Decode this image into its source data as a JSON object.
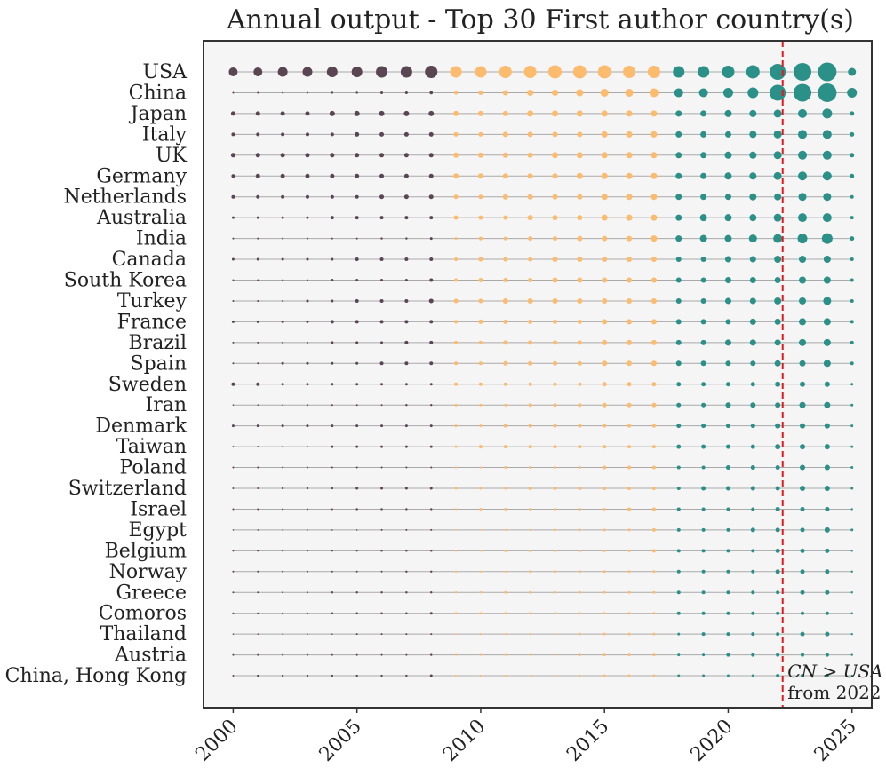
{
  "chart_data": {
    "type": "scatter",
    "title": "Annual output - Top 30 First author country(s)",
    "xlabel": "",
    "ylabel": "",
    "xlim": [
      1998.8,
      2025.8
    ],
    "x_ticks": [
      2000,
      2005,
      2010,
      2015,
      2020,
      2025
    ],
    "years": [
      2000,
      2001,
      2002,
      2003,
      2004,
      2005,
      2006,
      2007,
      2008,
      2009,
      2010,
      2011,
      2012,
      2013,
      2014,
      2015,
      2016,
      2017,
      2018,
      2019,
      2020,
      2021,
      2022,
      2023,
      2024,
      2025
    ],
    "countries": [
      "USA",
      "China",
      "Japan",
      "Italy",
      "UK",
      "Germany",
      "Netherlands",
      "Australia",
      "India",
      "Canada",
      "South Korea",
      "Turkey",
      "France",
      "Brazil",
      "Spain",
      "Sweden",
      "Iran",
      "Denmark",
      "Taiwan",
      "Poland",
      "Switzerland",
      "Israel",
      "Egypt",
      "Belgium",
      "Norway",
      "Greece",
      "Comoros",
      "Thailand",
      "Austria",
      "China, Hong Kong"
    ],
    "period_colors": [
      {
        "from": 2000,
        "to": 2008,
        "color": "#5a4553"
      },
      {
        "from": 2009,
        "to": 2017,
        "color": "#fdbb6e"
      },
      {
        "from": 2018,
        "to": 2025,
        "color": "#2a9088"
      }
    ],
    "size_units": "relative output (marker size)",
    "series": [
      {
        "name": "USA",
        "values": [
          5,
          5,
          5.5,
          5.5,
          6,
          6,
          6.5,
          6.5,
          7,
          6.5,
          6.5,
          7,
          7,
          7.5,
          7.5,
          7.5,
          7,
          7,
          6.5,
          6.5,
          7,
          7.5,
          9,
          10,
          10.5,
          4.5
        ]
      },
      {
        "name": "China",
        "values": [
          1,
          1,
          1,
          1,
          1.2,
          1.2,
          1.5,
          1.5,
          1.8,
          2,
          2.5,
          3,
          3.5,
          3.5,
          4,
          4.5,
          4.5,
          5,
          5,
          5,
          5.5,
          6,
          9,
          10,
          10.5,
          5.5
        ]
      },
      {
        "name": "Japan",
        "values": [
          2.5,
          2.5,
          2.5,
          2.5,
          3,
          3,
          3,
          3,
          3,
          3,
          3,
          3,
          3.5,
          3.5,
          3.5,
          3.5,
          3.5,
          3.5,
          3.5,
          3.5,
          4,
          4,
          4.5,
          5,
          5.5,
          2.5
        ]
      },
      {
        "name": "Italy",
        "values": [
          2,
          2,
          2,
          2,
          2,
          2.5,
          2.5,
          2.5,
          2.5,
          2.5,
          2.5,
          3,
          3,
          3,
          3,
          3.5,
          3.5,
          3.5,
          3.5,
          3.5,
          3.5,
          4,
          4.5,
          5,
          5,
          2.5
        ]
      },
      {
        "name": "UK",
        "values": [
          2.5,
          2.5,
          2.5,
          2.5,
          2.5,
          2.5,
          2.5,
          2.5,
          2.5,
          3,
          3,
          3,
          3,
          3.5,
          3.5,
          3.5,
          3.5,
          3.5,
          3.5,
          3.5,
          4,
          4,
          4.5,
          5,
          5,
          2.5
        ]
      },
      {
        "name": "Germany",
        "values": [
          2,
          2.5,
          2.5,
          2.5,
          2.5,
          2.5,
          2.5,
          2.5,
          2.5,
          3,
          3,
          3,
          3,
          3,
          3.5,
          3.5,
          3.5,
          3.5,
          3.5,
          3.5,
          4,
          4,
          4.5,
          5,
          5,
          2.5
        ]
      },
      {
        "name": "Netherlands",
        "values": [
          2,
          2,
          2,
          2,
          2,
          2,
          2.5,
          2.5,
          2.5,
          2.5,
          2.5,
          3,
          3,
          3,
          3,
          3.5,
          3.5,
          3.5,
          3.5,
          3.5,
          3.5,
          4,
          4,
          4.5,
          4.5,
          2
        ]
      },
      {
        "name": "Australia",
        "values": [
          1.5,
          1.5,
          1.5,
          1.5,
          2,
          2,
          2,
          2,
          2,
          2.5,
          2.5,
          2.5,
          3,
          3,
          3,
          3.5,
          3.5,
          3.5,
          3.5,
          4,
          4,
          4,
          4.5,
          5,
          5,
          2
        ]
      },
      {
        "name": "India",
        "values": [
          1,
          1,
          1,
          1,
          1,
          1,
          1.2,
          1.2,
          1.5,
          1.5,
          2,
          2,
          2.5,
          2.5,
          3,
          3,
          3,
          3.5,
          3.5,
          4,
          4,
          4.5,
          5,
          5.5,
          6,
          2.5
        ]
      },
      {
        "name": "Canada",
        "values": [
          1.5,
          1.5,
          1.5,
          1.5,
          1.5,
          2,
          2,
          2,
          2,
          2,
          2.5,
          2.5,
          2.5,
          3,
          3,
          3,
          3,
          3,
          3,
          3,
          3.5,
          3.5,
          4,
          4,
          4,
          2
        ]
      },
      {
        "name": "South Korea",
        "values": [
          1,
          1,
          1,
          1,
          1.5,
          1.5,
          1.5,
          1.5,
          2,
          2,
          2.5,
          2.5,
          2.5,
          3,
          3,
          3,
          3,
          3,
          3,
          3,
          3.5,
          3.5,
          3.5,
          4,
          4,
          2
        ]
      },
      {
        "name": "Turkey",
        "values": [
          1,
          1,
          1,
          1.5,
          1.5,
          2,
          2,
          2,
          2.5,
          2.5,
          2.5,
          3,
          3,
          3,
          3,
          3,
          3,
          3,
          3,
          3,
          3.5,
          3.5,
          4,
          4,
          4.5,
          2
        ]
      },
      {
        "name": "France",
        "values": [
          1.5,
          1.5,
          1.5,
          1.5,
          2,
          2,
          2,
          2,
          2,
          2,
          2.5,
          2.5,
          2.5,
          2.5,
          2.5,
          3,
          3,
          3,
          3,
          3,
          3,
          3.5,
          3.5,
          4,
          4,
          2
        ]
      },
      {
        "name": "Brazil",
        "values": [
          1,
          1,
          1,
          1,
          1.5,
          1.5,
          1.5,
          2,
          2,
          2,
          2,
          2.5,
          2.5,
          2.5,
          2.5,
          3,
          3,
          3,
          3,
          3,
          3.5,
          3.5,
          3.5,
          4,
          4,
          2
        ]
      },
      {
        "name": "Spain",
        "values": [
          1,
          1,
          1.5,
          1.5,
          1.5,
          1.5,
          2,
          2,
          2,
          2,
          2,
          2.5,
          2.5,
          2.5,
          2.5,
          3,
          3,
          3,
          3,
          3,
          3,
          3,
          3.5,
          3.5,
          4,
          2
        ]
      },
      {
        "name": "Sweden",
        "values": [
          2,
          2,
          1.5,
          1.5,
          1.5,
          1.5,
          1.5,
          1.5,
          1.5,
          2,
          2,
          2,
          2,
          2,
          2,
          2.5,
          2.5,
          2.5,
          2.5,
          2.5,
          2.5,
          2.5,
          3,
          3,
          3,
          1.5
        ]
      },
      {
        "name": "Iran",
        "values": [
          0.8,
          0.8,
          0.8,
          1,
          1,
          1,
          1,
          1.2,
          1.2,
          1.5,
          1.5,
          1.5,
          2,
          2,
          2,
          2.5,
          2.5,
          2.5,
          2.5,
          2.5,
          3,
          3,
          3,
          3.5,
          3.5,
          1.5
        ]
      },
      {
        "name": "Denmark",
        "values": [
          1.5,
          1.5,
          1.5,
          1.5,
          1.5,
          1.5,
          1.5,
          1.5,
          1.5,
          1.5,
          1.5,
          2,
          2,
          2,
          2,
          2,
          2,
          2,
          2.5,
          2.5,
          2.5,
          2.5,
          3,
          3,
          3,
          1.5
        ]
      },
      {
        "name": "Taiwan",
        "values": [
          1,
          1,
          1,
          1,
          1.5,
          1.5,
          1.5,
          1.5,
          1.5,
          1.5,
          2,
          2,
          2,
          2,
          2,
          2,
          2,
          2,
          2.5,
          2.5,
          2.5,
          2.5,
          3,
          3,
          3,
          1.5
        ]
      },
      {
        "name": "Poland",
        "values": [
          1,
          1,
          1,
          1,
          1,
          1,
          1,
          1,
          1,
          1.2,
          1.2,
          1.5,
          1.5,
          1.5,
          1.5,
          2,
          2,
          2,
          2,
          2,
          2.5,
          2.5,
          2.5,
          3,
          3,
          1.5
        ]
      },
      {
        "name": "Switzerland",
        "values": [
          1,
          1,
          1.2,
          1.2,
          1.2,
          1.5,
          1.5,
          1.5,
          1.5,
          1.5,
          1.5,
          1.5,
          2,
          2,
          2,
          2,
          2,
          2,
          2,
          2.5,
          2.5,
          2.5,
          2.5,
          3,
          3,
          1.5
        ]
      },
      {
        "name": "Israel",
        "values": [
          1,
          1,
          1,
          1,
          1,
          1.2,
          1.2,
          1.2,
          1.2,
          1.2,
          1.5,
          1.5,
          1.5,
          1.5,
          1.5,
          1.5,
          2,
          2,
          2,
          2,
          2,
          2,
          2.5,
          2.5,
          2.5,
          1.2
        ]
      },
      {
        "name": "Egypt",
        "values": [
          0.8,
          0.8,
          0.8,
          0.8,
          0.8,
          0.8,
          1,
          1,
          1,
          1,
          1,
          1.2,
          1.2,
          1.5,
          1.5,
          1.5,
          1.5,
          2,
          2,
          2,
          2,
          2.5,
          2.5,
          2.5,
          3,
          1.5
        ]
      },
      {
        "name": "Belgium",
        "values": [
          1,
          1,
          1,
          1,
          1,
          1,
          1.2,
          1.2,
          1.2,
          1.2,
          1.2,
          1.5,
          1.5,
          1.5,
          1.5,
          1.5,
          1.5,
          2,
          2,
          2,
          2,
          2,
          2.5,
          2.5,
          2.5,
          1.2
        ]
      },
      {
        "name": "Norway",
        "values": [
          1,
          1,
          1,
          1,
          1,
          1,
          1,
          1.2,
          1.2,
          1.2,
          1.2,
          1.2,
          1.5,
          1.5,
          1.5,
          1.5,
          1.5,
          1.5,
          2,
          2,
          2,
          2,
          2.5,
          2.5,
          2.5,
          1.2
        ]
      },
      {
        "name": "Greece",
        "values": [
          1,
          1,
          1,
          1,
          1.2,
          1.2,
          1.2,
          1.2,
          1.2,
          1.2,
          1.2,
          1.5,
          1.5,
          1.5,
          1.5,
          1.5,
          1.5,
          1.5,
          2,
          2,
          2,
          2,
          2,
          2.5,
          2.5,
          1.2
        ]
      },
      {
        "name": "Comoros",
        "values": [
          1,
          1,
          1,
          1,
          1.2,
          1.2,
          1.2,
          1.2,
          1.5,
          1.5,
          1.5,
          1.5,
          1.5,
          1.5,
          1.5,
          1.5,
          1.5,
          1.5,
          2,
          2,
          2,
          2,
          2,
          2,
          2,
          1.2
        ]
      },
      {
        "name": "Thailand",
        "values": [
          0.8,
          0.8,
          0.8,
          0.8,
          0.8,
          1,
          1,
          1,
          1,
          1,
          1.2,
          1.2,
          1.2,
          1.2,
          1.5,
          1.5,
          1.5,
          1.5,
          1.5,
          2,
          2,
          2,
          2,
          2.5,
          2.5,
          1.2
        ]
      },
      {
        "name": "Austria",
        "values": [
          1,
          1,
          1,
          1,
          1,
          1,
          1,
          1,
          1.2,
          1.2,
          1.2,
          1.2,
          1.2,
          1.2,
          1.5,
          1.5,
          1.5,
          1.5,
          1.5,
          1.5,
          2,
          2,
          2,
          2,
          2,
          1.2
        ]
      },
      {
        "name": "China, Hong Kong",
        "values": [
          1,
          1.2,
          1.2,
          1.2,
          1.2,
          1.2,
          1.2,
          1.2,
          1.5,
          1.2,
          1.2,
          1.2,
          1.2,
          1.2,
          1.2,
          1.5,
          1.5,
          1.5,
          1.5,
          1.5,
          1.5,
          1.5,
          2,
          2,
          2,
          1.2
        ]
      }
    ],
    "reference_line": {
      "x": 2022.2,
      "color": "#e0191f",
      "style": "dashed"
    },
    "annotation": {
      "math": "CN > USA",
      "text": "from 2022",
      "x": 2022.4
    },
    "row_line_color": "#a9a9a9",
    "plot_background": "#f5f5f5",
    "frame_color": "#333333"
  }
}
